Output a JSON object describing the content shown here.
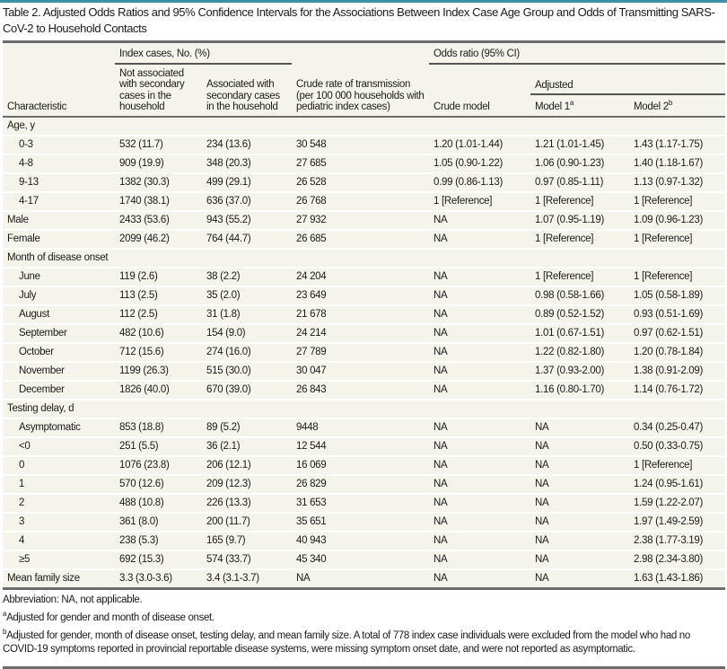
{
  "title": "Table 2. Adjusted Odds Ratios and 95% Confidence Intervals for the Associations Between Index Case Age Group and Odds of Transmitting SARS-CoV-2 to Household Contacts",
  "header": {
    "index_cases": "Index cases, No. (%)",
    "odds_ratio": "Odds ratio (95% CI)",
    "adjusted": "Adjusted",
    "characteristic": "Characteristic",
    "not_associated": "Not associated with secondary cases in the household",
    "associated": "Associated with secondary cases in the household",
    "crude_rate": "Crude rate of transmission (per 100 000 households with pediatric index cases)",
    "crude_model": "Crude model",
    "model1": "Model 1",
    "model1_sup": "a",
    "model2": "Model 2",
    "model2_sup": "b"
  },
  "rows": [
    {
      "label": "Age, y",
      "section": true
    },
    {
      "label": "0-3",
      "indent": true,
      "cells": [
        "532 (11.7)",
        "234 (13.6)",
        "30 548",
        "1.20 (1.01-1.44)",
        "1.21 (1.01-1.45)",
        "1.43 (1.17-1.75)"
      ]
    },
    {
      "label": "4-8",
      "indent": true,
      "cells": [
        "909 (19.9)",
        "348 (20.3)",
        "27 685",
        "1.05 (0.90-1.22)",
        "1.06 (0.90-1.23)",
        "1.40 (1.18-1.67)"
      ]
    },
    {
      "label": "9-13",
      "indent": true,
      "cells": [
        "1382 (30.3)",
        "499 (29.1)",
        "26 528",
        "0.99 (0.86-1.13)",
        "0.97 (0.85-1.11)",
        "1.13 (0.97-1.32)"
      ]
    },
    {
      "label": "4-17",
      "indent": true,
      "cells": [
        "1740 (38.1)",
        "636 (37.0)",
        "26 768",
        "1 [Reference]",
        "1 [Reference]",
        "1 [Reference]"
      ]
    },
    {
      "label": "Male",
      "cells": [
        "2433 (53.6)",
        "943 (55.2)",
        "27 932",
        "NA",
        "1.07 (0.95-1.19)",
        "1.09 (0.96-1.23)"
      ]
    },
    {
      "label": "Female",
      "cells": [
        "2099 (46.2)",
        "764 (44.7)",
        "26 685",
        "NA",
        "1 [Reference]",
        "1 [Reference]"
      ]
    },
    {
      "label": "Month of disease onset",
      "section": true
    },
    {
      "label": "June",
      "indent": true,
      "cells": [
        "119 (2.6)",
        "38 (2.2)",
        "24 204",
        "NA",
        "1 [Reference]",
        "1 [Reference]"
      ]
    },
    {
      "label": "July",
      "indent": true,
      "cells": [
        "113 (2.5)",
        "35 (2.0)",
        "23 649",
        "NA",
        "0.98 (0.58-1.66)",
        "1.05 (0.58-1.89)"
      ]
    },
    {
      "label": "August",
      "indent": true,
      "cells": [
        "112 (2.5)",
        "31 (1.8)",
        "21 678",
        "NA",
        "0.89 (0.52-1.52)",
        "0.93 (0.51-1.69)"
      ]
    },
    {
      "label": "September",
      "indent": true,
      "cells": [
        "482 (10.6)",
        "154 (9.0)",
        "24 214",
        "NA",
        "1.01 (0.67-1.51)",
        "0.97 (0.62-1.51)"
      ]
    },
    {
      "label": "October",
      "indent": true,
      "cells": [
        "712 (15.6)",
        "274 (16.0)",
        "27 789",
        "NA",
        "1.22 (0.82-1.80)",
        "1.20 (0.78-1.84)"
      ]
    },
    {
      "label": "November",
      "indent": true,
      "cells": [
        "1199 (26.3)",
        "515 (30.0)",
        "30 047",
        "NA",
        "1.37 (0.93-2.00)",
        "1.38 (0.91-2.09)"
      ]
    },
    {
      "label": "December",
      "indent": true,
      "cells": [
        "1826 (40.0)",
        "670 (39.0)",
        "26 843",
        "NA",
        "1.16 (0.80-1.70)",
        "1.14 (0.76-1.72)"
      ]
    },
    {
      "label": "Testing delay, d",
      "section": true
    },
    {
      "label": "Asymptomatic",
      "indent": true,
      "cells": [
        "853 (18.8)",
        "89 (5.2)",
        "9448",
        "NA",
        "NA",
        "0.34 (0.25-0.47)"
      ]
    },
    {
      "label": "<0",
      "indent": true,
      "cells": [
        "251 (5.5)",
        "36 (2.1)",
        "12 544",
        "NA",
        "NA",
        "0.50 (0.33-0.75)"
      ]
    },
    {
      "label": "0",
      "indent": true,
      "cells": [
        "1076 (23.8)",
        "206 (12.1)",
        "16 069",
        "NA",
        "NA",
        "1 [Reference]"
      ]
    },
    {
      "label": "1",
      "indent": true,
      "cells": [
        "570 (12.6)",
        "209 (12.3)",
        "26 829",
        "NA",
        "NA",
        "1.24 (0.95-1.61)"
      ]
    },
    {
      "label": "2",
      "indent": true,
      "cells": [
        "488 (10.8)",
        "226 (13.3)",
        "31 653",
        "NA",
        "NA",
        "1.59 (1.22-2.07)"
      ]
    },
    {
      "label": "3",
      "indent": true,
      "cells": [
        "361 (8.0)",
        "200 (11.7)",
        "35 651",
        "NA",
        "NA",
        "1.97 (1.49-2.59)"
      ]
    },
    {
      "label": "4",
      "indent": true,
      "cells": [
        "238 (5.3)",
        "165 (9.7)",
        "40 943",
        "NA",
        "NA",
        "2.38 (1.77-3.19)"
      ]
    },
    {
      "label": "≥5",
      "indent": true,
      "cells": [
        "692 (15.3)",
        "574 (33.7)",
        "45 340",
        "NA",
        "NA",
        "2.98 (2.34-3.80)"
      ]
    },
    {
      "label": "Mean family size",
      "cells": [
        "3.3 (3.0-3.6)",
        "3.4 (3.1-3.7)",
        "NA",
        "NA",
        "NA",
        "1.63 (1.43-1.86)"
      ]
    }
  ],
  "notes": {
    "abbreviation": "Abbreviation: NA, not applicable.",
    "a_mark": "a",
    "a_text": "Adjusted for gender and month of disease onset.",
    "b_mark": "b",
    "b_text": "Adjusted for gender, month of disease onset, testing delay, and mean family size. A total of 778 index case individuals were excluded from the model who had no COVID-19 symptoms reported in provincial reportable disease systems, were missing symptom onset date, and were not reported as asymptomatic."
  }
}
